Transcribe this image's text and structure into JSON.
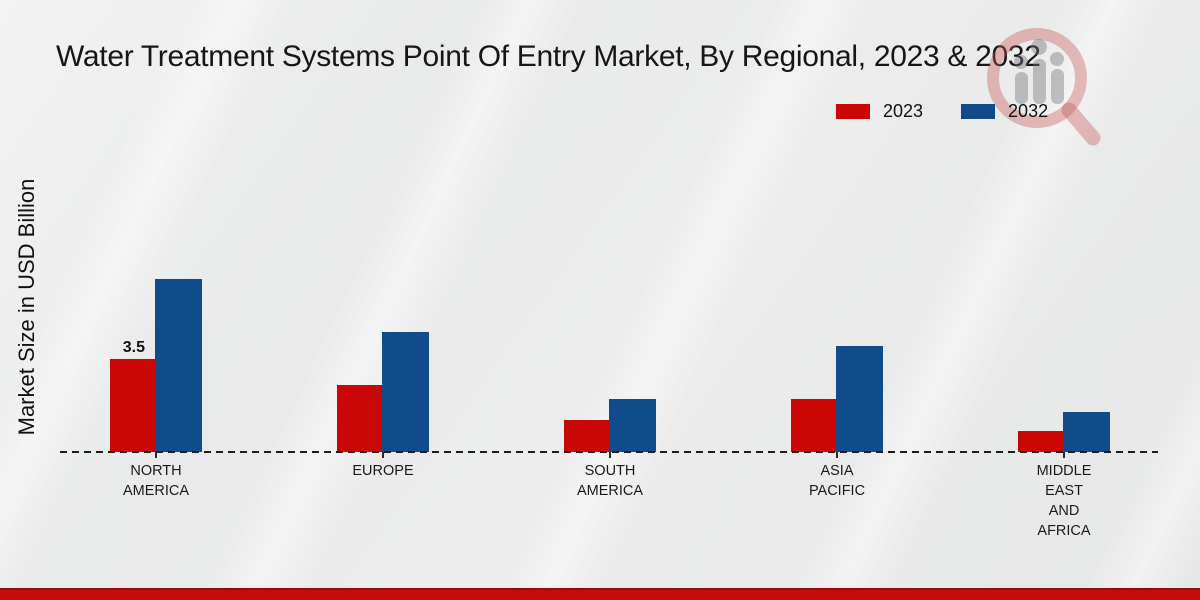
{
  "title": "Water Treatment Systems Point Of Entry Market, By Regional, 2023 & 2032",
  "y_axis_label": "Market Size in USD Billion",
  "legend": {
    "items": [
      {
        "label": "2023",
        "color": "#c90707"
      },
      {
        "label": "2032",
        "color": "#104c8c"
      }
    ]
  },
  "footer": {
    "bar_color": "#c40c0c"
  },
  "watermark": {
    "icon": "magnifier-bar-chart-logo",
    "ring_color": "rgba(198,88,88,0.38)",
    "bars_color": "rgba(112,117,122,0.42)"
  },
  "chart_data": {
    "type": "bar",
    "title": "Water Treatment Systems Point Of Entry Market, By Regional, 2023 & 2032",
    "ylabel": "Market Size in USD Billion",
    "units": "USD Billion",
    "categories": [
      "NORTH AMERICA",
      "EUROPE",
      "SOUTH AMERICA",
      "ASIA PACIFIC",
      "MIDDLE EAST AND AFRICA"
    ],
    "category_label_lines": [
      [
        "NORTH",
        "AMERICA"
      ],
      [
        "EUROPE"
      ],
      [
        "SOUTH",
        "AMERICA"
      ],
      [
        "ASIA",
        "PACIFIC"
      ],
      [
        "MIDDLE",
        "EAST",
        "AND",
        "AFRICA"
      ]
    ],
    "series": [
      {
        "name": "2023",
        "color": "#c90707",
        "values": [
          3.5,
          2.5,
          1.2,
          2.0,
          0.8
        ]
      },
      {
        "name": "2032",
        "color": "#104c8c",
        "values": [
          6.5,
          4.5,
          2.0,
          4.0,
          1.5
        ]
      }
    ],
    "data_labels": [
      {
        "series_index": 0,
        "category_index": 0,
        "text": "3.5"
      }
    ],
    "ylim": [
      0,
      7.5
    ],
    "grid": false,
    "legend_position": "top-right",
    "baseline_style": "dashed"
  }
}
